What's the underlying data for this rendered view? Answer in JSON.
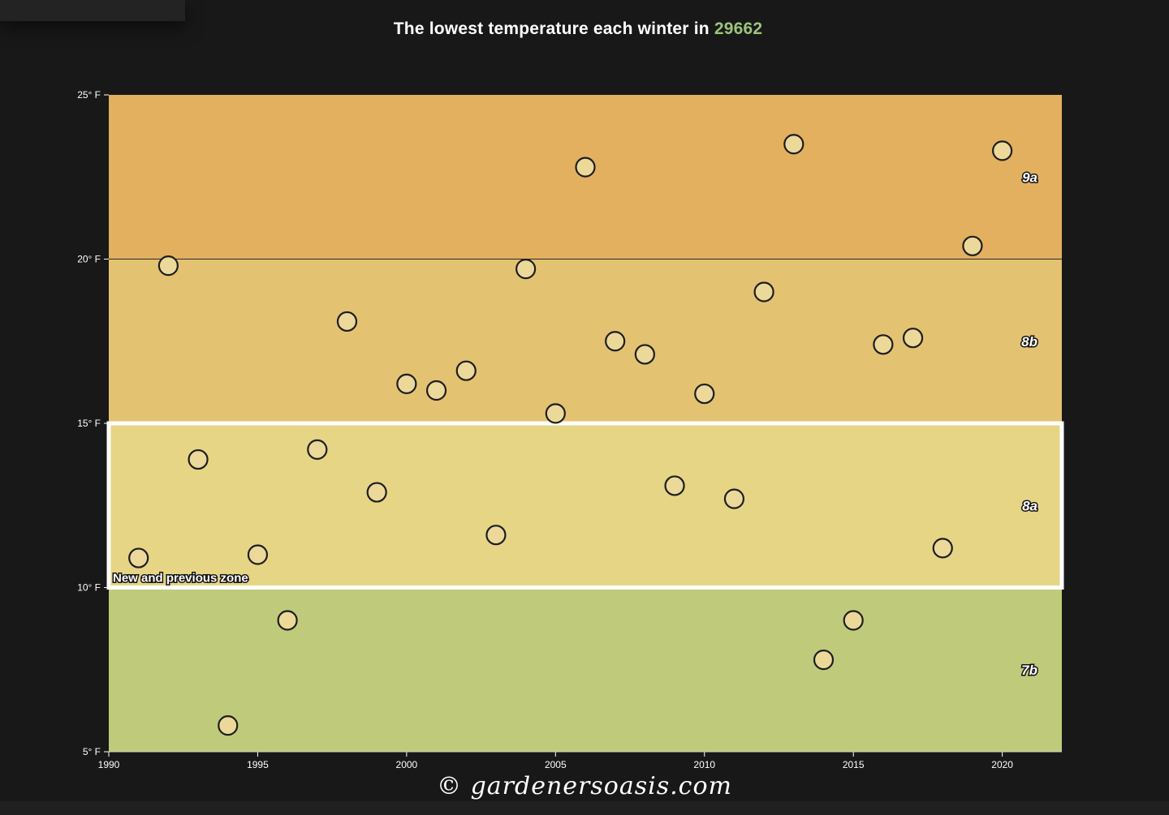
{
  "title": {
    "prefix": "The lowest temperature each winter in",
    "zip": "29662",
    "zip_color": "#9cc47a"
  },
  "watermark": "© gardenersoasis.com",
  "chart_data": {
    "type": "scatter",
    "title": "The lowest temperature each winter in 29662",
    "xlim": [
      1990,
      2022
    ],
    "ylim": [
      5,
      25
    ],
    "x_ticks": [
      1990,
      1995,
      2000,
      2005,
      2010,
      2015,
      2020
    ],
    "y_ticks": [
      {
        "value": 5,
        "label": "5° F"
      },
      {
        "value": 10,
        "label": "10° F"
      },
      {
        "value": 15,
        "label": "15° F"
      },
      {
        "value": 20,
        "label": "20° F"
      },
      {
        "value": 25,
        "label": "25° F"
      }
    ],
    "zones": [
      {
        "name": "7b",
        "from": 5,
        "to": 10,
        "color": "#bfcb7b"
      },
      {
        "name": "8a",
        "from": 10,
        "to": 15,
        "color": "#e6d585"
      },
      {
        "name": "8b",
        "from": 15,
        "to": 20,
        "color": "#e3c271"
      },
      {
        "name": "9a",
        "from": 20,
        "to": 25,
        "color": "#e3b05f"
      }
    ],
    "highlight": {
      "from": 10,
      "to": 15,
      "label": "New and previous zone"
    },
    "points": [
      {
        "x": 1991,
        "y": 10.9
      },
      {
        "x": 1992,
        "y": 19.8
      },
      {
        "x": 1993,
        "y": 13.9
      },
      {
        "x": 1994,
        "y": 5.8
      },
      {
        "x": 1995,
        "y": 11.0
      },
      {
        "x": 1996,
        "y": 9.0
      },
      {
        "x": 1997,
        "y": 14.2
      },
      {
        "x": 1998,
        "y": 18.1
      },
      {
        "x": 1999,
        "y": 12.9
      },
      {
        "x": 2000,
        "y": 16.2
      },
      {
        "x": 2001,
        "y": 16.0
      },
      {
        "x": 2002,
        "y": 16.6
      },
      {
        "x": 2003,
        "y": 11.6
      },
      {
        "x": 2004,
        "y": 19.7
      },
      {
        "x": 2005,
        "y": 15.3
      },
      {
        "x": 2006,
        "y": 22.8
      },
      {
        "x": 2007,
        "y": 17.5
      },
      {
        "x": 2008,
        "y": 17.1
      },
      {
        "x": 2009,
        "y": 13.1
      },
      {
        "x": 2010,
        "y": 15.9
      },
      {
        "x": 2011,
        "y": 12.7
      },
      {
        "x": 2012,
        "y": 19.0
      },
      {
        "x": 2013,
        "y": 23.5
      },
      {
        "x": 2014,
        "y": 7.8
      },
      {
        "x": 2015,
        "y": 9.0
      },
      {
        "x": 2016,
        "y": 17.4
      },
      {
        "x": 2017,
        "y": 17.6
      },
      {
        "x": 2018,
        "y": 11.2
      },
      {
        "x": 2019,
        "y": 20.4
      },
      {
        "x": 2020,
        "y": 23.3
      }
    ],
    "point_fill": "#ecd99a",
    "point_stroke": "#1e1e1e"
  }
}
